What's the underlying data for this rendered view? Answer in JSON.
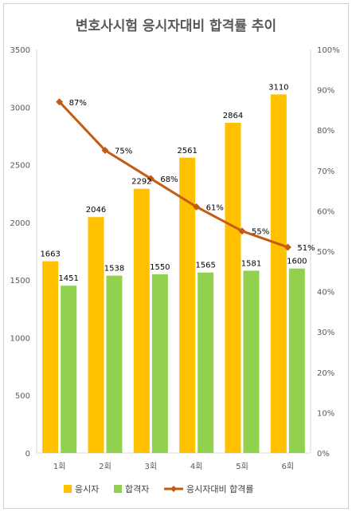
{
  "chart_data": {
    "type": "bar",
    "title": "변호사시험 응시자대비 합격률 추이",
    "categories": [
      "1회",
      "2회",
      "3회",
      "4회",
      "5회",
      "6회"
    ],
    "series": [
      {
        "name": "응시자",
        "kind": "bar",
        "color": "#FFC000",
        "values": [
          1663,
          2046,
          2292,
          2561,
          2864,
          3110
        ]
      },
      {
        "name": "합격자",
        "kind": "bar",
        "color": "#92D050",
        "values": [
          1451,
          1538,
          1550,
          1565,
          1581,
          1600
        ]
      },
      {
        "name": "응시자대비 합격률",
        "kind": "line",
        "axis": "right",
        "color": "#C55A11",
        "values": [
          87,
          75,
          68,
          61,
          55,
          51
        ],
        "labels": [
          "87%",
          "75%",
          "68%",
          "61%",
          "55%",
          "51%"
        ]
      }
    ],
    "y_left": {
      "min": 0,
      "max": 3500,
      "step": 500,
      "ticks": [
        "0",
        "500",
        "1000",
        "1500",
        "2000",
        "2500",
        "3000",
        "3500"
      ]
    },
    "y_right": {
      "min": 0,
      "max": 100,
      "step": 10,
      "ticks": [
        "0%",
        "10%",
        "20%",
        "30%",
        "40%",
        "50%",
        "60%",
        "70%",
        "80%",
        "90%",
        "100%"
      ]
    },
    "grid": false,
    "legend": "bottom"
  }
}
